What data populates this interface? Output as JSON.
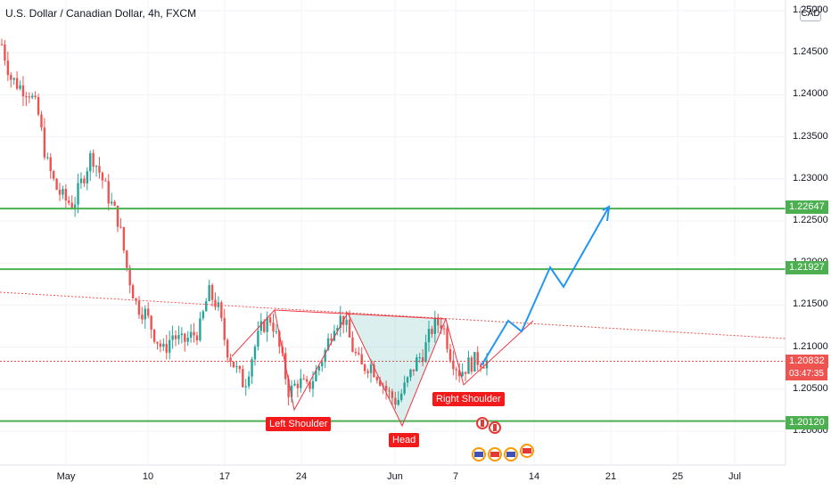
{
  "header": {
    "title": "U.S. Dollar / Canadian Dollar, 4h, FXCM",
    "currency_badge": "CAD"
  },
  "price_axis": {
    "ticks": [
      "1.25000",
      "1.24500",
      "1.24000",
      "1.23500",
      "1.23000",
      "1.22500",
      "1.22000",
      "1.21500",
      "1.21000",
      "1.20500",
      "1.20000"
    ],
    "tick_values": [
      1.25,
      1.245,
      1.24,
      1.235,
      1.23,
      1.225,
      1.22,
      1.215,
      1.21,
      1.205,
      1.2
    ]
  },
  "time_axis": {
    "ticks": [
      "May",
      "10",
      "17",
      "24",
      "Jun",
      "7",
      "14",
      "21",
      "25",
      "Jul"
    ]
  },
  "levels": [
    {
      "label": "1.22647",
      "value": 1.22647,
      "color": "#4caf50"
    },
    {
      "label": "1.21927",
      "value": 1.21927,
      "color": "#4caf50"
    },
    {
      "label": "1.20120",
      "value": 1.2012,
      "color": "#4caf50"
    }
  ],
  "current": {
    "price": "1.20832",
    "value": 1.20832,
    "countdown": "03:47:35",
    "color": "#ef5350"
  },
  "pattern_labels": {
    "left_shoulder": "Left Shoulder",
    "head": "Head",
    "right_shoulder": "Right Shoulder"
  },
  "chart_data": {
    "type": "candlestick",
    "symbol": "USD/CAD",
    "timeframe": "4h",
    "ylim": [
      1.1975,
      1.2525
    ],
    "close_path": [
      1.246,
      1.242,
      1.241,
      1.2405,
      1.238,
      1.232,
      1.229,
      1.2275,
      1.227,
      1.23,
      1.233,
      1.2305,
      1.2275,
      1.225,
      1.219,
      1.215,
      1.214,
      1.2115,
      1.2095,
      1.2115,
      1.2105,
      1.2112,
      1.212,
      1.2165,
      1.215,
      1.21,
      1.2075,
      1.2055,
      1.2095,
      1.2125,
      1.2135,
      1.2095,
      1.2045,
      1.206,
      1.205,
      1.207,
      1.2095,
      1.213,
      1.2135,
      1.21,
      1.2075,
      1.208,
      1.2065,
      1.2045,
      1.2035,
      1.2055,
      1.208,
      1.2095,
      1.2125,
      1.213,
      1.209,
      1.207,
      1.208,
      1.2085,
      1.2083
    ],
    "colors": {
      "up": "#26a69a",
      "down": "#ef5350",
      "forecast": "#2196f3",
      "pattern": "#f23645"
    }
  }
}
